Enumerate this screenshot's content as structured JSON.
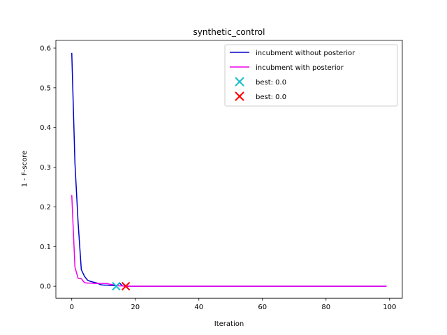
{
  "chart_data": {
    "type": "line",
    "title": "synthetic_control",
    "xlabel": "Iteration",
    "ylabel": "1 - F-score",
    "xlim": [
      -5,
      104
    ],
    "ylim": [
      -0.03,
      0.62
    ],
    "xticks": [
      0,
      20,
      40,
      60,
      80,
      100
    ],
    "yticks": [
      0.0,
      0.1,
      0.2,
      0.3,
      0.4,
      0.5,
      0.6
    ],
    "grid": false,
    "legend_position": "top-right",
    "series": [
      {
        "name": "incubment without posterior",
        "color": "#0000cc",
        "x": [
          0,
          1,
          2,
          3,
          4,
          5,
          6,
          7,
          8,
          9,
          10,
          11,
          12,
          13,
          14,
          15,
          16,
          17,
          99
        ],
        "y": [
          0.588,
          0.31,
          0.16,
          0.042,
          0.025,
          0.015,
          0.012,
          0.01,
          0.008,
          0.004,
          0.003,
          0.003,
          0.002,
          0.002,
          0.001,
          0.008,
          0.001,
          0.0,
          0.0
        ]
      },
      {
        "name": "incubment with posterior",
        "color": "#ee00ee",
        "x": [
          0,
          1,
          2,
          3,
          4,
          5,
          6,
          7,
          8,
          9,
          10,
          11,
          12,
          13,
          14,
          15,
          16,
          17,
          99
        ],
        "y": [
          0.23,
          0.048,
          0.02,
          0.019,
          0.009,
          0.008,
          0.008,
          0.007,
          0.007,
          0.007,
          0.007,
          0.007,
          0.005,
          0.004,
          0.002,
          0.001,
          0.001,
          0.0,
          0.0
        ]
      }
    ],
    "markers": [
      {
        "label": "best: 0.0",
        "x": 14,
        "y": 0.0,
        "color": "#17becf",
        "symbol": "x"
      },
      {
        "label": "best: 0.0",
        "x": 17,
        "y": 0.0,
        "color": "#ff0000",
        "symbol": "x"
      }
    ]
  }
}
